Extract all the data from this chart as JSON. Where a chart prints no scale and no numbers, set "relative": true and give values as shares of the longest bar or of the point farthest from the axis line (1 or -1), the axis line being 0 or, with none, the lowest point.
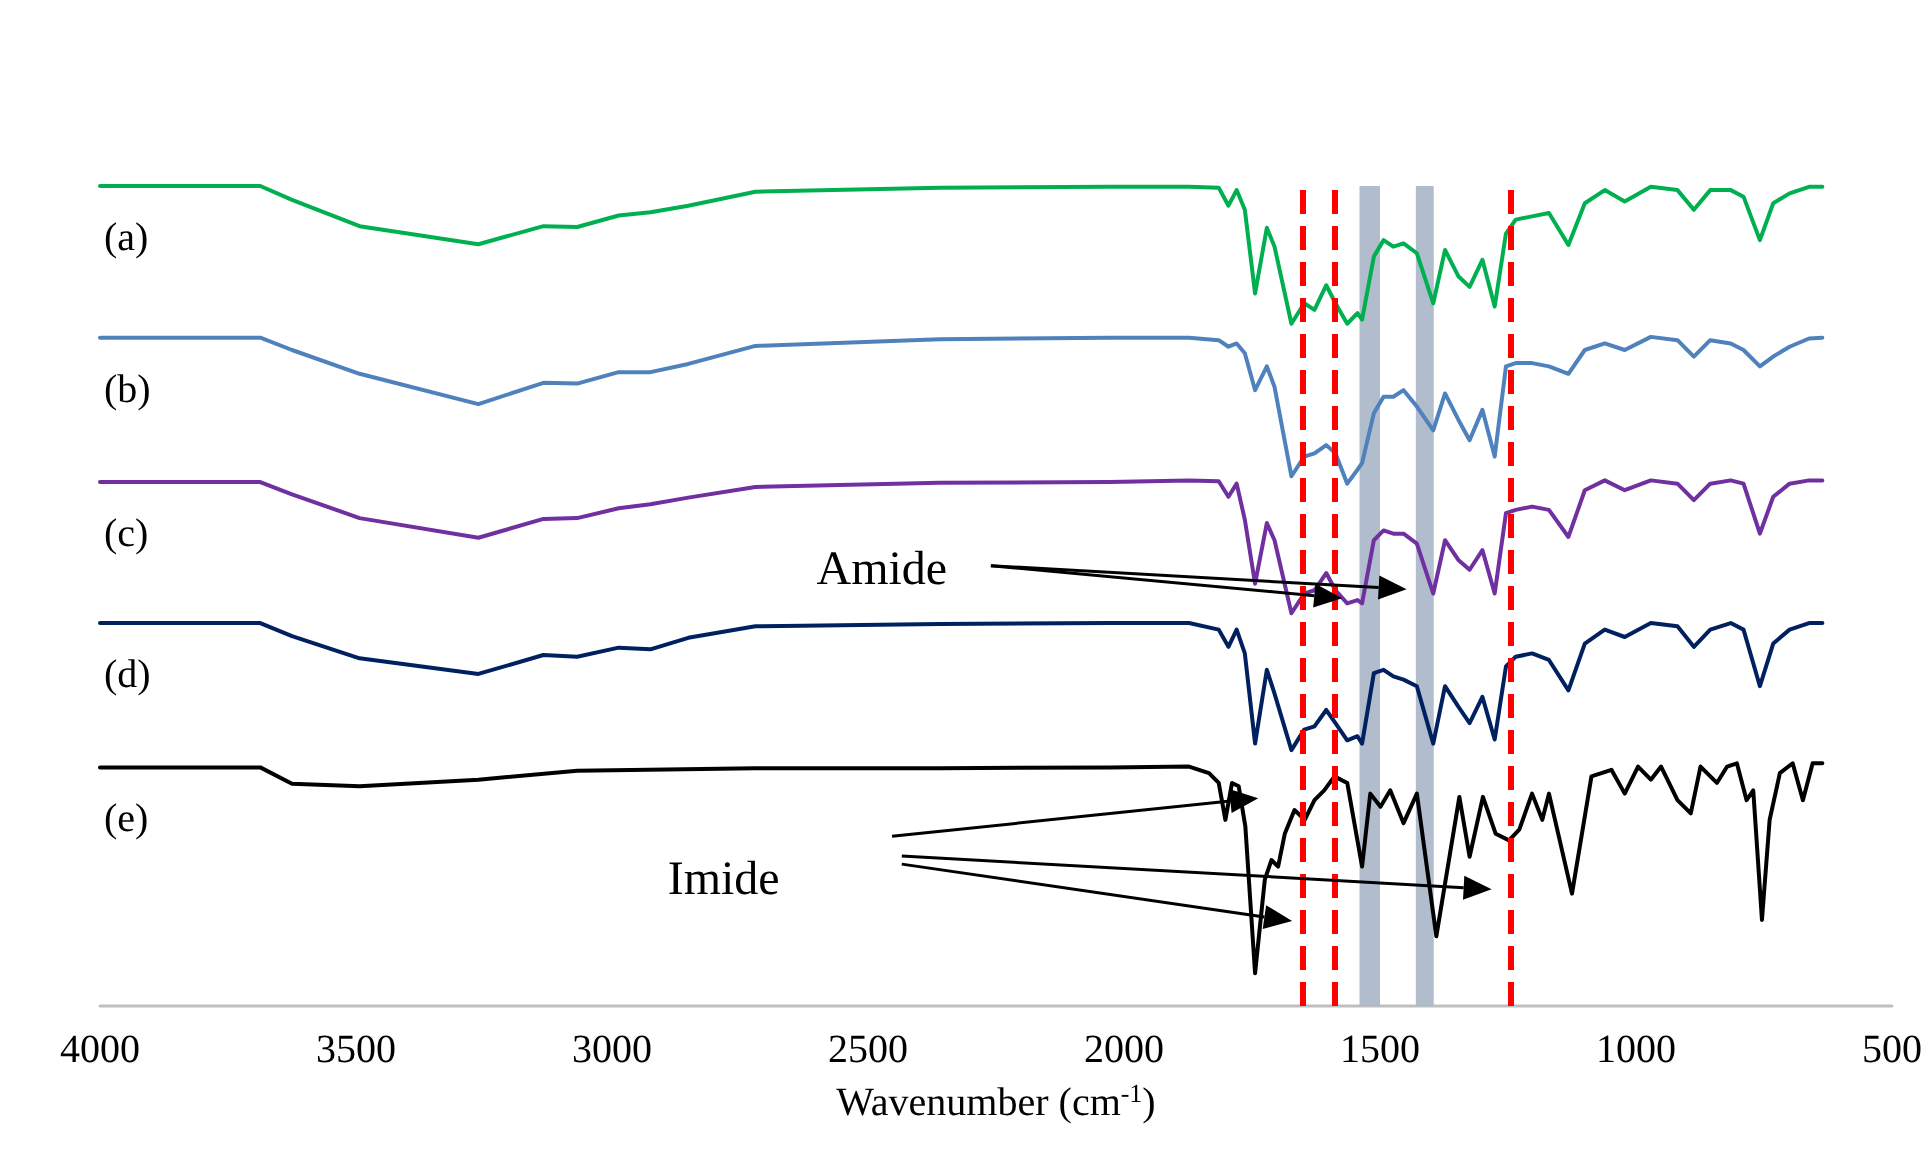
{
  "chart_data": {
    "type": "line",
    "relative": true,
    "xlabel": "Wavenumber (cm$^{-1}$)",
    "xlim": [
      4000,
      500
    ],
    "xticks": [
      4000,
      3500,
      3000,
      2500,
      2000,
      1500,
      1000,
      500
    ],
    "tick_labels": "x",
    "marker": "none",
    "line_style": "solid",
    "annotations": [
      "Amide",
      "Imide"
    ],
    "ref_lines": [
      {
        "axis": "x",
        "value": 1650,
        "color": "#ff0000",
        "line_style": "dashed"
      },
      {
        "axis": "x",
        "value": 1590,
        "color": "#ff0000",
        "line_style": "dashed"
      },
      {
        "axis": "x",
        "value": 1245,
        "color": "#ff0000",
        "line_style": "dashed"
      }
    ],
    "bands": [
      {
        "axis": "x",
        "from": 1540,
        "to": 1500,
        "color": "#adb9ca"
      },
      {
        "axis": "x",
        "from": 1430,
        "to": 1395,
        "color": "#adb9ca"
      }
    ],
    "x": [
      4000,
      3687,
      3625,
      3493,
      3261,
      3134,
      3068,
      2987,
      2925,
      2851,
      2720,
      2360,
      2028,
      1873,
      1815,
      1796,
      1780,
      1764,
      1744,
      1721,
      1706,
      1673,
      1648,
      1628,
      1605,
      1587,
      1564,
      1544,
      1535,
      1512,
      1493,
      1474,
      1454,
      1428,
      1396,
      1373,
      1347,
      1325,
      1300,
      1276,
      1254,
      1235,
      1203,
      1170,
      1132,
      1100,
      1061,
      1022,
      971,
      919,
      887,
      855,
      815,
      790,
      758,
      732,
      700,
      662,
      636
    ],
    "series": [
      {
        "name": "(a)",
        "color": "#00b050",
        "values": [
          1.0,
          1.0,
          0.983,
          0.951,
          0.929,
          0.951,
          0.95,
          0.964,
          0.968,
          0.976,
          0.993,
          0.998,
          0.999,
          0.999,
          0.998,
          0.976,
          0.995,
          0.971,
          0.869,
          0.949,
          0.926,
          0.832,
          0.857,
          0.849,
          0.879,
          0.857,
          0.832,
          0.845,
          0.837,
          0.914,
          0.934,
          0.926,
          0.93,
          0.918,
          0.857,
          0.922,
          0.89,
          0.877,
          0.91,
          0.853,
          0.942,
          0.959,
          0.963,
          0.967,
          0.928,
          0.979,
          0.995,
          0.981,
          0.999,
          0.995,
          0.971,
          0.995,
          0.995,
          0.987,
          0.934,
          0.979,
          0.991,
          0.999,
          0.999
        ]
      },
      {
        "name": "(b)",
        "color": "#4f81bd",
        "values": [
          0.815,
          0.815,
          0.8,
          0.771,
          0.734,
          0.76,
          0.759,
          0.773,
          0.773,
          0.783,
          0.805,
          0.813,
          0.815,
          0.815,
          0.812,
          0.804,
          0.808,
          0.796,
          0.751,
          0.78,
          0.755,
          0.646,
          0.67,
          0.674,
          0.684,
          0.674,
          0.637,
          0.654,
          0.662,
          0.723,
          0.743,
          0.743,
          0.751,
          0.731,
          0.702,
          0.747,
          0.715,
          0.69,
          0.727,
          0.67,
          0.78,
          0.784,
          0.784,
          0.78,
          0.771,
          0.8,
          0.808,
          0.8,
          0.816,
          0.812,
          0.792,
          0.812,
          0.808,
          0.8,
          0.78,
          0.792,
          0.804,
          0.814,
          0.815
        ]
      },
      {
        "name": "(c)",
        "color": "#7030a0",
        "values": [
          0.639,
          0.639,
          0.624,
          0.595,
          0.571,
          0.594,
          0.595,
          0.607,
          0.612,
          0.62,
          0.633,
          0.638,
          0.639,
          0.641,
          0.64,
          0.621,
          0.637,
          0.593,
          0.515,
          0.589,
          0.568,
          0.479,
          0.503,
          0.507,
          0.528,
          0.507,
          0.491,
          0.495,
          0.491,
          0.568,
          0.58,
          0.576,
          0.576,
          0.564,
          0.503,
          0.568,
          0.544,
          0.532,
          0.556,
          0.503,
          0.601,
          0.605,
          0.609,
          0.605,
          0.572,
          0.629,
          0.641,
          0.629,
          0.641,
          0.637,
          0.617,
          0.637,
          0.641,
          0.637,
          0.576,
          0.621,
          0.637,
          0.641,
          0.641
        ]
      },
      {
        "name": "(d)",
        "color": "#002060",
        "values": [
          0.467,
          0.467,
          0.451,
          0.424,
          0.405,
          0.428,
          0.426,
          0.437,
          0.435,
          0.449,
          0.463,
          0.466,
          0.467,
          0.467,
          0.459,
          0.438,
          0.459,
          0.43,
          0.32,
          0.41,
          0.381,
          0.312,
          0.337,
          0.341,
          0.361,
          0.345,
          0.324,
          0.329,
          0.32,
          0.406,
          0.41,
          0.402,
          0.398,
          0.39,
          0.32,
          0.39,
          0.365,
          0.345,
          0.377,
          0.325,
          0.414,
          0.426,
          0.43,
          0.422,
          0.385,
          0.442,
          0.459,
          0.45,
          0.467,
          0.463,
          0.438,
          0.459,
          0.467,
          0.459,
          0.39,
          0.442,
          0.459,
          0.467,
          0.467
        ]
      },
      {
        "name": "(e)",
        "color": "#000000",
        "x": [
          4000,
          3687,
          3625,
          3493,
          3261,
          3068,
          2720,
          2360,
          2028,
          1873,
          1834,
          1815,
          1802,
          1789,
          1776,
          1763,
          1744,
          1725,
          1712,
          1699,
          1686,
          1667,
          1647,
          1628,
          1609,
          1589,
          1564,
          1535,
          1519,
          1499,
          1480,
          1454,
          1428,
          1390,
          1345,
          1325,
          1299,
          1274,
          1248,
          1228,
          1203,
          1183,
          1170,
          1125,
          1087,
          1048,
          1022,
          996,
          971,
          951,
          919,
          893,
          874,
          842,
          822,
          803,
          784,
          771,
          754,
          739,
          719,
          694,
          674,
          655,
          636
        ],
        "values": [
          0.291,
          0.291,
          0.271,
          0.268,
          0.276,
          0.287,
          0.29,
          0.29,
          0.291,
          0.292,
          0.284,
          0.272,
          0.227,
          0.272,
          0.268,
          0.219,
          0.04,
          0.154,
          0.178,
          0.17,
          0.21,
          0.239,
          0.227,
          0.251,
          0.263,
          0.28,
          0.272,
          0.17,
          0.259,
          0.243,
          0.263,
          0.223,
          0.259,
          0.085,
          0.255,
          0.182,
          0.255,
          0.21,
          0.202,
          0.215,
          0.259,
          0.227,
          0.259,
          0.137,
          0.28,
          0.288,
          0.259,
          0.292,
          0.276,
          0.292,
          0.251,
          0.235,
          0.292,
          0.272,
          0.292,
          0.296,
          0.251,
          0.263,
          0.105,
          0.227,
          0.284,
          0.296,
          0.251,
          0.296,
          0.296
        ]
      }
    ]
  }
}
